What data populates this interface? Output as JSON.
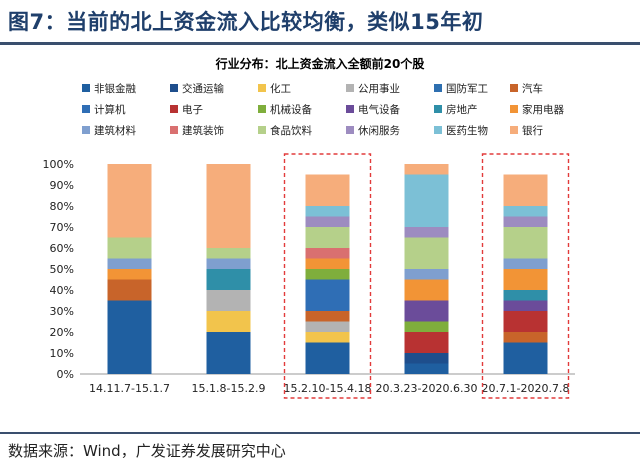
{
  "header": {
    "title": "图7：当前的北上资金流入比较均衡，类似15年初"
  },
  "footer": {
    "source": "数据来源：Wind，广发证券发展研究中心"
  },
  "chart_data": {
    "type": "bar",
    "stacked": true,
    "title": "行业分布：北上资金流入全额前20个股",
    "xlabel": "",
    "ylabel": "",
    "ylim": [
      0,
      100
    ],
    "yticks": [
      "0%",
      "10%",
      "20%",
      "30%",
      "40%",
      "50%",
      "60%",
      "70%",
      "80%",
      "90%",
      "100%"
    ],
    "legend_position": "top",
    "categories": [
      "14.11.7-15.1.7",
      "15.1.8-15.2.9",
      "15.2.10-15.4.18",
      "20.3.23-2020.6.30",
      "20.7.1-2020.7.8"
    ],
    "highlighted_categories": [
      2,
      4
    ],
    "highlight_color": "#e23b3b",
    "series": [
      {
        "name": "非银金融",
        "color": "#1f5fa0",
        "values": [
          35,
          20,
          15,
          5,
          15
        ]
      },
      {
        "name": "交通运输",
        "color": "#1e4e8c",
        "values": [
          0,
          0,
          0,
          5,
          0
        ]
      },
      {
        "name": "化工",
        "color": "#f2c44c",
        "values": [
          0,
          10,
          5,
          0,
          0
        ]
      },
      {
        "name": "公用事业",
        "color": "#b3b3b3",
        "values": [
          0,
          10,
          5,
          0,
          0
        ]
      },
      {
        "name": "国防军工",
        "color": "#2e6fb0",
        "values": [
          0,
          0,
          0,
          0,
          0
        ]
      },
      {
        "name": "汽车",
        "color": "#c8642a",
        "values": [
          10,
          0,
          5,
          0,
          5
        ]
      },
      {
        "name": "计算机",
        "color": "#2f6eb5",
        "values": [
          0,
          0,
          15,
          0,
          0
        ]
      },
      {
        "name": "电子",
        "color": "#b83232",
        "values": [
          0,
          0,
          0,
          10,
          10
        ]
      },
      {
        "name": "机械设备",
        "color": "#7fae3c",
        "values": [
          0,
          0,
          5,
          5,
          0
        ]
      },
      {
        "name": "电气设备",
        "color": "#6b4c9a",
        "values": [
          0,
          0,
          0,
          10,
          5
        ]
      },
      {
        "name": "房地产",
        "color": "#2f8fa8",
        "values": [
          0,
          10,
          0,
          0,
          5
        ]
      },
      {
        "name": "家用电器",
        "color": "#f29436",
        "values": [
          5,
          0,
          5,
          10,
          10
        ]
      },
      {
        "name": "建筑材料",
        "color": "#7f9fcf",
        "values": [
          5,
          5,
          0,
          5,
          5
        ]
      },
      {
        "name": "建筑装饰",
        "color": "#d97070",
        "values": [
          0,
          0,
          5,
          0,
          0
        ]
      },
      {
        "name": "食品饮料",
        "color": "#b5d08a",
        "values": [
          10,
          5,
          10,
          15,
          15
        ]
      },
      {
        "name": "休闲服务",
        "color": "#9d8cc0",
        "values": [
          0,
          0,
          5,
          5,
          5
        ]
      },
      {
        "name": "医药生物",
        "color": "#7cc0d6",
        "values": [
          0,
          0,
          5,
          25,
          5
        ]
      },
      {
        "name": "银行",
        "color": "#f6ad7b",
        "values": [
          35,
          40,
          15,
          5,
          15
        ]
      }
    ]
  }
}
